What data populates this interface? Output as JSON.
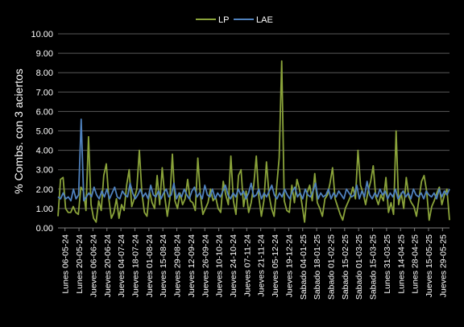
{
  "chart_data": {
    "type": "line",
    "xlabel": "",
    "ylabel": "% Combs. con 3 aciertos",
    "ylim": [
      0,
      10
    ],
    "yticks": [
      "0.00",
      "1.00",
      "2.00",
      "3.00",
      "4.00",
      "5.00",
      "6.00",
      "7.00",
      "8.00",
      "9.00",
      "10.00"
    ],
    "legend_position": "top",
    "grid": true,
    "x_tick_labels": [
      "Lunes 06-05-24",
      "Lunes 20-05-24",
      "Jueves 06-06-24",
      "Jueves 20-06-24",
      "Jueves 04-07-24",
      "Jueves 18-07-24",
      "Jueves 01-08-24",
      "Jueves 15-08-24",
      "Jueves 29-08-24",
      "Jueves 12-09-24",
      "Jueves 26-09-24",
      "Jueves 10-10-24",
      "Jueves 24-10-24",
      "Jueves 07-11-24",
      "Jueves 21-11-24",
      "Jueves 05-12-24",
      "Jueves 19-12-24",
      "Sabado 04-01-25",
      "Sabado 18-01-25",
      "Sabado 01-02-25",
      "Sabado 15-02-25",
      "Sabado 01-03-25",
      "Sabado 15-03-25",
      "Lunes 31-03-25",
      "Lunes 14-04-25",
      "Lunes 28-04-25",
      "Jueves 15-05-25",
      "Jueves 29-05-25"
    ],
    "series": [
      {
        "name": "LP",
        "color": "#8aa33a",
        "values": [
          0.6,
          2.5,
          2.6,
          1.0,
          0.8,
          0.8,
          1.1,
          0.8,
          0.7,
          2.1,
          1.9,
          0.9,
          4.7,
          1.2,
          0.5,
          0.3,
          1.4,
          0.9,
          2.7,
          3.3,
          1.5,
          0.5,
          0.8,
          1.5,
          0.5,
          1.2,
          0.9,
          2.2,
          3.0,
          1.1,
          1.5,
          2.0,
          4.0,
          1.8,
          0.8,
          0.6,
          1.9,
          1.3,
          1.0,
          2.7,
          1.2,
          3.1,
          1.6,
          0.6,
          1.5,
          3.8,
          1.4,
          1.0,
          1.8,
          1.2,
          1.5,
          2.5,
          1.4,
          1.3,
          0.9,
          3.6,
          1.7,
          0.7,
          1.0,
          1.3,
          2.0,
          1.4,
          1.6,
          1.0,
          0.8,
          2.4,
          1.7,
          1.2,
          3.7,
          1.4,
          0.7,
          2.7,
          3.0,
          1.1,
          1.9,
          0.8,
          1.3,
          2.2,
          3.7,
          1.6,
          0.6,
          1.4,
          3.4,
          1.7,
          1.0,
          0.6,
          2.1,
          3.6,
          8.6,
          1.4,
          0.9,
          0.8,
          2.2,
          1.3,
          2.5,
          2.0,
          1.2,
          0.3,
          1.8,
          2.2,
          1.4,
          2.8,
          1.3,
          1.0,
          0.6,
          1.5,
          1.7,
          2.3,
          3.1,
          1.5,
          1.1,
          0.7,
          0.4,
          1.0,
          1.3,
          1.6,
          2.1,
          1.5,
          4.0,
          2.2,
          1.8,
          1.2,
          1.9,
          2.4,
          3.2,
          1.6,
          1.2,
          1.7,
          1.4,
          2.6,
          0.8,
          1.3,
          0.7,
          5.0,
          1.2,
          1.8,
          1.0,
          2.6,
          1.6,
          1.3,
          1.1,
          0.6,
          1.5,
          2.4,
          2.7,
          1.9,
          0.4,
          1.1,
          1.4,
          1.8,
          2.1,
          1.2,
          1.7,
          2.0,
          0.4
        ]
      },
      {
        "name": "LAE",
        "color": "#4f81bd",
        "values": [
          1.6,
          1.5,
          1.8,
          1.5,
          1.6,
          1.4,
          2.0,
          1.5,
          1.7,
          5.6,
          1.4,
          1.6,
          1.8,
          1.6,
          2.1,
          1.7,
          1.5,
          1.9,
          1.6,
          2.0,
          1.5,
          1.8,
          2.1,
          1.6,
          1.5,
          1.9,
          1.7,
          1.6,
          2.3,
          1.8,
          1.5,
          1.7,
          2.0,
          1.6,
          1.8,
          1.5,
          2.2,
          1.7,
          1.6,
          1.9,
          1.5,
          1.8,
          2.0,
          1.6,
          1.7,
          2.3,
          1.5,
          1.8,
          1.6,
          2.0,
          1.7,
          1.5,
          1.9,
          2.1,
          1.6,
          1.8,
          1.5,
          2.2,
          1.7,
          1.6,
          2.0,
          1.5,
          1.8,
          1.6,
          1.9,
          2.2,
          1.7,
          1.5,
          1.8,
          1.6,
          2.0,
          1.7,
          1.9,
          1.5,
          1.8,
          2.3,
          1.6,
          1.7,
          2.0,
          1.5,
          1.8,
          1.6,
          1.9,
          2.2,
          1.7,
          1.5,
          1.8,
          1.6,
          2.0,
          1.7,
          1.5,
          1.9,
          2.1,
          1.6,
          1.8,
          1.5,
          2.0,
          1.7,
          1.6,
          1.9,
          2.3,
          1.5,
          1.8,
          1.6,
          1.7,
          2.0,
          1.5,
          1.8,
          1.6,
          1.9,
          1.7,
          1.5,
          2.0,
          1.8,
          1.6,
          1.7,
          2.2,
          1.5,
          1.9,
          1.6,
          2.4,
          1.7,
          1.5,
          1.8,
          1.6,
          2.0,
          1.7,
          1.9,
          1.5,
          1.8,
          1.6,
          2.0,
          1.5,
          1.7,
          1.9,
          1.6,
          1.8,
          1.5,
          2.0,
          1.7,
          1.6,
          1.8,
          1.5,
          1.9,
          1.7,
          1.6,
          1.8,
          1.5,
          2.0,
          1.6,
          1.9,
          1.7,
          2.0
        ]
      }
    ]
  }
}
